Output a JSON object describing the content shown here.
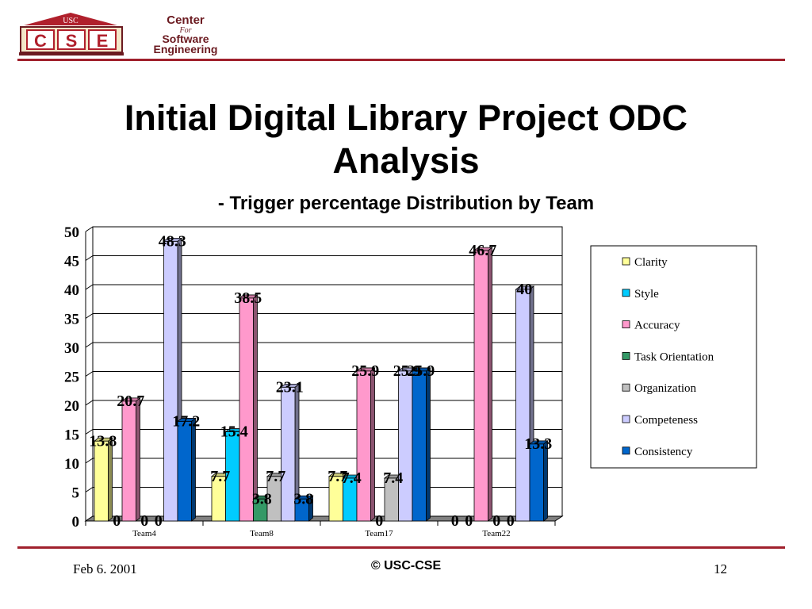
{
  "header": {
    "logo_lines": [
      "Center",
      "For",
      "Software",
      "Engineering"
    ],
    "logo_badge": "USC",
    "logo_letters": [
      "C",
      "S",
      "E"
    ]
  },
  "slide": {
    "title_line1": "Initial Digital Library Project ODC",
    "title_line2": "Analysis",
    "subtitle": "- Trigger percentage Distribution by Team"
  },
  "footer": {
    "date": "Feb 6. 2001",
    "copyright": "© USC-CSE",
    "page": "12"
  },
  "colors": {
    "accent_rule": "#a0202c"
  },
  "chart_data": {
    "type": "bar",
    "categories": [
      "Team4",
      "Team8",
      "Team17",
      "Team22"
    ],
    "ylim": [
      0,
      50
    ],
    "yticks": [
      0,
      5,
      10,
      15,
      20,
      25,
      30,
      35,
      40,
      45,
      50
    ],
    "grid": true,
    "legend_position": "right",
    "series": [
      {
        "name": "Clarity",
        "color": "#ffff99",
        "values": [
          13.8,
          7.7,
          7.7,
          0
        ],
        "labels": [
          "13.8",
          "7.7",
          "7.7",
          "0"
        ]
      },
      {
        "name": "Style",
        "color": "#00ccff",
        "values": [
          0,
          15.4,
          7.4,
          0
        ],
        "labels": [
          "0",
          "15.4",
          "7.4",
          "0"
        ]
      },
      {
        "name": "Accuracy",
        "color": "#ff99cc",
        "values": [
          20.7,
          38.5,
          25.9,
          46.7
        ],
        "labels": [
          "20.7",
          "38.5",
          "25.9",
          "46.7"
        ]
      },
      {
        "name": "Task Orientation",
        "color": "#339966",
        "values": [
          0,
          3.8,
          0,
          0
        ],
        "labels": [
          "0",
          "3.8",
          "0",
          "0"
        ]
      },
      {
        "name": "Organization",
        "color": "#c0c0c0",
        "values": [
          0,
          7.7,
          7.4,
          0
        ],
        "labels": [
          "0",
          "7.7",
          "7.4",
          "0"
        ]
      },
      {
        "name": "Competeness",
        "color": "#ccccff",
        "values": [
          48.3,
          23.1,
          25.9,
          40
        ],
        "labels": [
          "48.3",
          "23.1",
          "25.9",
          "40"
        ]
      },
      {
        "name": "Consistency",
        "color": "#0066cc",
        "values": [
          17.2,
          3.8,
          25.9,
          13.3
        ],
        "labels": [
          "17.2",
          "3.8",
          "25.9",
          "13.3"
        ]
      }
    ]
  }
}
